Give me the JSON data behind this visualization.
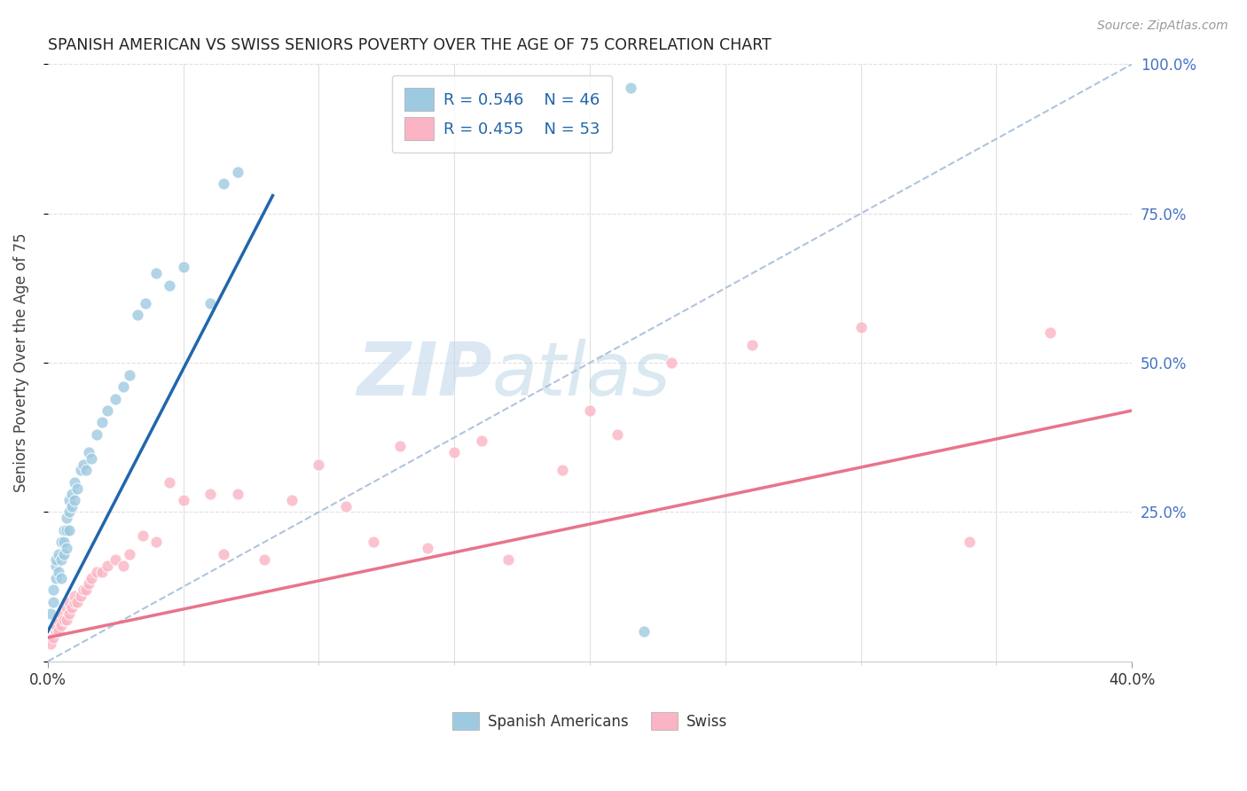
{
  "title": "SPANISH AMERICAN VS SWISS SENIORS POVERTY OVER THE AGE OF 75 CORRELATION CHART",
  "source": "Source: ZipAtlas.com",
  "ylabel": "Seniors Poverty Over the Age of 75",
  "xlim": [
    0.0,
    0.4
  ],
  "ylim": [
    0.0,
    1.0
  ],
  "yticks": [
    0.0,
    0.25,
    0.5,
    0.75,
    1.0
  ],
  "ytick_labels": [
    "",
    "25.0%",
    "50.0%",
    "75.0%",
    "100.0%"
  ],
  "legend_r1": "R = 0.546",
  "legend_n1": "N = 46",
  "legend_r2": "R = 0.455",
  "legend_n2": "N = 53",
  "color_blue": "#9ecae1",
  "color_pink": "#fbb4c4",
  "line_blue": "#2166ac",
  "line_pink": "#e8748a",
  "line_diag": "#b0c4de",
  "background": "#ffffff",
  "grid_color": "#e0e0e0",
  "blue_scatter_x": [
    0.001,
    0.002,
    0.002,
    0.003,
    0.003,
    0.003,
    0.004,
    0.004,
    0.005,
    0.005,
    0.005,
    0.006,
    0.006,
    0.006,
    0.007,
    0.007,
    0.007,
    0.008,
    0.008,
    0.008,
    0.009,
    0.009,
    0.01,
    0.01,
    0.011,
    0.012,
    0.013,
    0.014,
    0.015,
    0.016,
    0.018,
    0.02,
    0.022,
    0.025,
    0.028,
    0.03,
    0.033,
    0.036,
    0.04,
    0.045,
    0.05,
    0.06,
    0.065,
    0.07,
    0.22,
    0.215
  ],
  "blue_scatter_y": [
    0.08,
    0.1,
    0.12,
    0.14,
    0.16,
    0.17,
    0.15,
    0.18,
    0.14,
    0.17,
    0.2,
    0.18,
    0.2,
    0.22,
    0.19,
    0.22,
    0.24,
    0.22,
    0.25,
    0.27,
    0.26,
    0.28,
    0.27,
    0.3,
    0.29,
    0.32,
    0.33,
    0.32,
    0.35,
    0.34,
    0.38,
    0.4,
    0.42,
    0.44,
    0.46,
    0.48,
    0.58,
    0.6,
    0.65,
    0.63,
    0.66,
    0.6,
    0.8,
    0.82,
    0.05,
    0.96
  ],
  "pink_scatter_x": [
    0.001,
    0.002,
    0.003,
    0.003,
    0.004,
    0.004,
    0.005,
    0.005,
    0.006,
    0.007,
    0.007,
    0.008,
    0.008,
    0.009,
    0.01,
    0.01,
    0.011,
    0.012,
    0.013,
    0.014,
    0.015,
    0.016,
    0.018,
    0.02,
    0.022,
    0.025,
    0.028,
    0.03,
    0.035,
    0.04,
    0.045,
    0.05,
    0.06,
    0.065,
    0.07,
    0.08,
    0.09,
    0.1,
    0.11,
    0.12,
    0.13,
    0.14,
    0.15,
    0.16,
    0.17,
    0.19,
    0.2,
    0.21,
    0.23,
    0.26,
    0.3,
    0.34,
    0.37
  ],
  "pink_scatter_y": [
    0.03,
    0.04,
    0.05,
    0.06,
    0.05,
    0.07,
    0.06,
    0.08,
    0.07,
    0.07,
    0.09,
    0.08,
    0.1,
    0.09,
    0.1,
    0.11,
    0.1,
    0.11,
    0.12,
    0.12,
    0.13,
    0.14,
    0.15,
    0.15,
    0.16,
    0.17,
    0.16,
    0.18,
    0.21,
    0.2,
    0.3,
    0.27,
    0.28,
    0.18,
    0.28,
    0.17,
    0.27,
    0.33,
    0.26,
    0.2,
    0.36,
    0.19,
    0.35,
    0.37,
    0.17,
    0.32,
    0.42,
    0.38,
    0.5,
    0.53,
    0.56,
    0.2,
    0.55
  ],
  "blue_line_x": [
    0.0,
    0.083
  ],
  "blue_line_y": [
    0.05,
    0.78
  ],
  "pink_line_x": [
    0.0,
    0.4
  ],
  "pink_line_y": [
    0.04,
    0.42
  ],
  "diag_line_x": [
    0.0,
    0.4
  ],
  "diag_line_y": [
    0.0,
    1.0
  ],
  "xtick_minor": [
    0.05,
    0.1,
    0.15,
    0.2,
    0.25,
    0.3,
    0.35
  ]
}
